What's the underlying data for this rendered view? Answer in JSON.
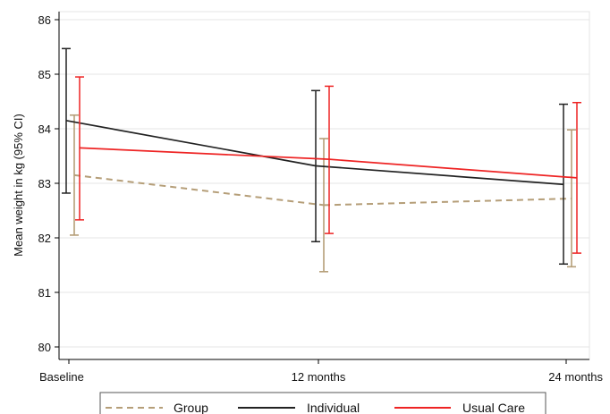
{
  "chart_data": {
    "type": "line",
    "title": "",
    "xlabel": "",
    "ylabel": "Mean weight in kg (95% CI)",
    "categories": [
      "Baseline",
      "12 months",
      "24 months"
    ],
    "ylim": [
      80,
      86
    ],
    "yticks": [
      80,
      81,
      82,
      83,
      84,
      85,
      86
    ],
    "grid": "y-major",
    "legend_position": "bottom",
    "series": [
      {
        "name": "Group",
        "color": "#b59e78",
        "line_style": "dashed",
        "values": [
          83.15,
          82.6,
          82.72
        ],
        "ci_lower": [
          82.05,
          81.38,
          81.47
        ],
        "ci_upper": [
          84.25,
          83.82,
          83.98
        ]
      },
      {
        "name": "Individual",
        "color": "#222222",
        "line_style": "solid",
        "values": [
          84.15,
          83.32,
          82.98
        ],
        "ci_lower": [
          82.82,
          81.93,
          81.52
        ],
        "ci_upper": [
          85.47,
          84.7,
          84.45
        ]
      },
      {
        "name": "Usual Care",
        "color": "#ee2424",
        "line_style": "solid",
        "values": [
          83.65,
          83.44,
          83.1
        ],
        "ci_lower": [
          82.33,
          82.08,
          81.72
        ],
        "ci_upper": [
          84.95,
          84.78,
          84.48
        ]
      }
    ]
  }
}
